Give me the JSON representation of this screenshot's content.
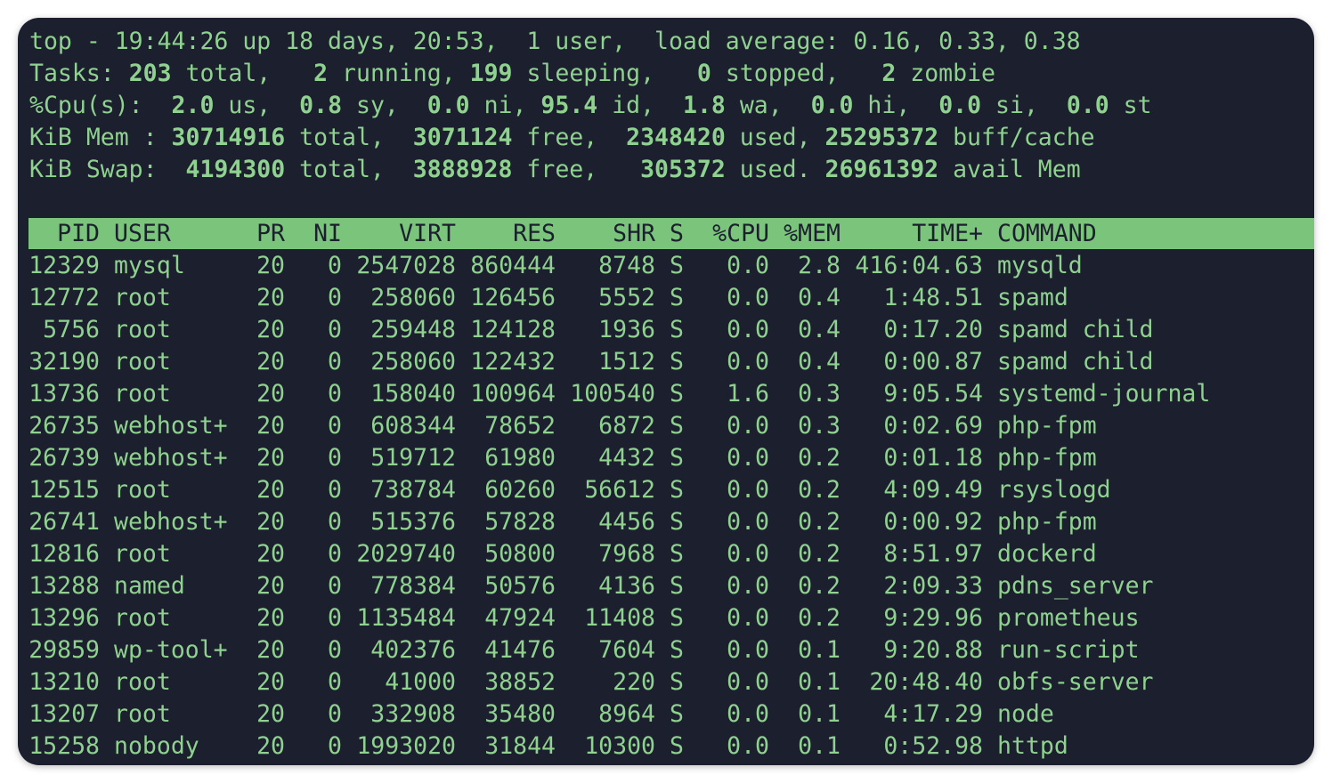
{
  "summary": [
    [
      "top - 19:44:26 up 18 days, 20:53,  1 user,  load average: 0.16, 0.33, 0.38"
    ],
    [
      "Tasks: ",
      "203",
      " total,   ",
      "2",
      " running, ",
      "199",
      " sleeping,   ",
      "0",
      " stopped,   ",
      "2",
      " zombie"
    ],
    [
      "%Cpu(s):  ",
      "2.0",
      " us,  ",
      "0.8",
      " sy,  ",
      "0.0",
      " ni, ",
      "95.4",
      " id,  ",
      "1.8",
      " wa,  ",
      "0.0",
      " hi,  ",
      "0.0",
      " si,  ",
      "0.0",
      " st"
    ],
    [
      "KiB Mem : ",
      "30714916",
      " total,  ",
      "3071124",
      " free,  ",
      "2348420",
      " used, ",
      "25295372",
      " buff/cache"
    ],
    [
      "KiB Swap:  ",
      "4194300",
      " total,  ",
      "3888928",
      " free,   ",
      "305372",
      " used. ",
      "26961392",
      " avail Mem"
    ]
  ],
  "table": {
    "columns": [
      "PID",
      "USER",
      "PR",
      "NI",
      "VIRT",
      "RES",
      "SHR",
      "S",
      "%CPU",
      "%MEM",
      "TIME+",
      "COMMAND"
    ],
    "rows": [
      [
        "12329",
        "mysql",
        "20",
        "0",
        "2547028",
        "860444",
        "8748",
        "S",
        "0.0",
        "2.8",
        "416:04.63",
        "mysqld"
      ],
      [
        "12772",
        "root",
        "20",
        "0",
        "258060",
        "126456",
        "5552",
        "S",
        "0.0",
        "0.4",
        "1:48.51",
        "spamd"
      ],
      [
        "5756",
        "root",
        "20",
        "0",
        "259448",
        "124128",
        "1936",
        "S",
        "0.0",
        "0.4",
        "0:17.20",
        "spamd child"
      ],
      [
        "32190",
        "root",
        "20",
        "0",
        "258060",
        "122432",
        "1512",
        "S",
        "0.0",
        "0.4",
        "0:00.87",
        "spamd child"
      ],
      [
        "13736",
        "root",
        "20",
        "0",
        "158040",
        "100964",
        "100540",
        "S",
        "1.6",
        "0.3",
        "9:05.54",
        "systemd-journal"
      ],
      [
        "26735",
        "webhost+",
        "20",
        "0",
        "608344",
        "78652",
        "6872",
        "S",
        "0.0",
        "0.3",
        "0:02.69",
        "php-fpm"
      ],
      [
        "26739",
        "webhost+",
        "20",
        "0",
        "519712",
        "61980",
        "4432",
        "S",
        "0.0",
        "0.2",
        "0:01.18",
        "php-fpm"
      ],
      [
        "12515",
        "root",
        "20",
        "0",
        "738784",
        "60260",
        "56612",
        "S",
        "0.0",
        "0.2",
        "4:09.49",
        "rsyslogd"
      ],
      [
        "26741",
        "webhost+",
        "20",
        "0",
        "515376",
        "57828",
        "4456",
        "S",
        "0.0",
        "0.2",
        "0:00.92",
        "php-fpm"
      ],
      [
        "12816",
        "root",
        "20",
        "0",
        "2029740",
        "50800",
        "7968",
        "S",
        "0.0",
        "0.2",
        "8:51.97",
        "dockerd"
      ],
      [
        "13288",
        "named",
        "20",
        "0",
        "778384",
        "50576",
        "4136",
        "S",
        "0.0",
        "0.2",
        "2:09.33",
        "pdns_server"
      ],
      [
        "13296",
        "root",
        "20",
        "0",
        "1135484",
        "47924",
        "11408",
        "S",
        "0.0",
        "0.2",
        "9:29.96",
        "prometheus"
      ],
      [
        "29859",
        "wp-tool+",
        "20",
        "0",
        "402376",
        "41476",
        "7604",
        "S",
        "0.0",
        "0.1",
        "9:20.88",
        "run-script"
      ],
      [
        "13210",
        "root",
        "20",
        "0",
        "41000",
        "38852",
        "220",
        "S",
        "0.0",
        "0.1",
        "20:48.40",
        "obfs-server"
      ],
      [
        "13207",
        "root",
        "20",
        "0",
        "332908",
        "35480",
        "8964",
        "S",
        "0.0",
        "0.1",
        "4:17.29",
        "node"
      ],
      [
        "15258",
        "nobody",
        "20",
        "0",
        "1993020",
        "31844",
        "10300",
        "S",
        "0.0",
        "0.1",
        "0:52.98",
        "httpd"
      ]
    ]
  }
}
